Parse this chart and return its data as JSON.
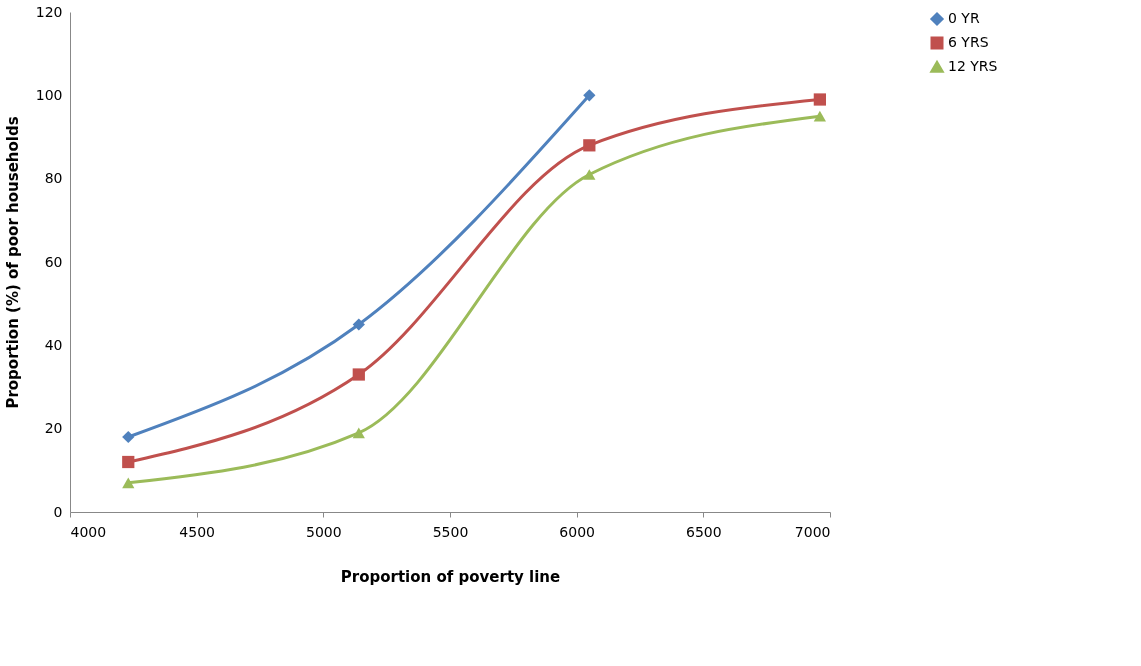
{
  "chart_data": {
    "type": "line",
    "xlabel": "Proportion of poverty line",
    "ylabel": "Proportion (%) of poor households",
    "xlim": [
      4000,
      7000
    ],
    "xticks": [
      4000,
      4500,
      5000,
      5500,
      6000,
      6500,
      7000
    ],
    "ylim": [
      0,
      120
    ],
    "yticks": [
      0,
      20,
      40,
      60,
      80,
      100,
      120
    ],
    "grid": false,
    "legend": "right",
    "series": [
      {
        "name": "0 YR",
        "color": "#4f81bd",
        "marker": "diamond",
        "x": [
          4230,
          5140,
          6050
        ],
        "values": [
          18,
          45,
          100
        ]
      },
      {
        "name": "6 YRS",
        "color": "#c0504d",
        "marker": "square",
        "x": [
          4230,
          5140,
          6050,
          6960
        ],
        "values": [
          12,
          33,
          88,
          99
        ]
      },
      {
        "name": "12 YRS",
        "color": "#9bbb59",
        "marker": "triangle",
        "x": [
          4230,
          5140,
          6050,
          6960
        ],
        "values": [
          7,
          19,
          81,
          95
        ]
      }
    ]
  }
}
